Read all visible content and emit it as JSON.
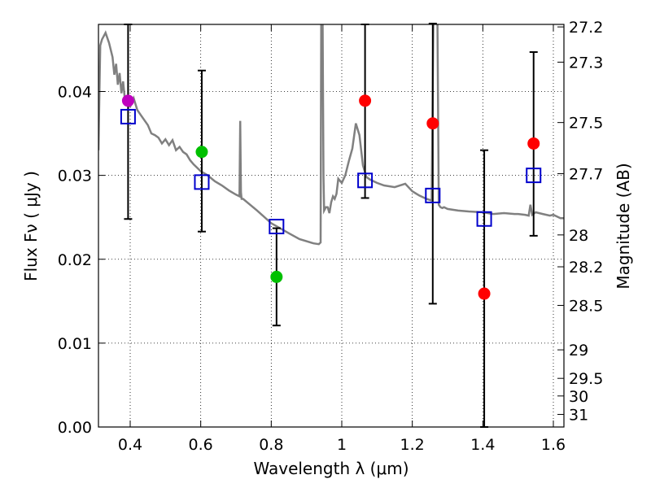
{
  "chart_data": {
    "type": "scatter",
    "xlabel": "Wavelength  λ (μm)",
    "ylabel": "Flux  Fν  ( μJy )",
    "ylabel_right": "Magnitude (AB)",
    "xlim": [
      0.31,
      1.63
    ],
    "ylim": [
      0.0,
      0.048
    ],
    "grid": true,
    "x_ticks": [
      0.4,
      0.6,
      0.8,
      1.0,
      1.2,
      1.4,
      1.6
    ],
    "x_tick_labels": [
      "0.4",
      "0.6",
      "0.8",
      "1",
      "1.2",
      "1.4",
      "1.6"
    ],
    "y_ticks": [
      0.0,
      0.01,
      0.02,
      0.03,
      0.04
    ],
    "y_tick_labels": [
      "0.00",
      "0.01",
      "0.02",
      "0.03",
      "0.04"
    ],
    "right_ticks": [
      {
        "label": "27.2",
        "flux": 0.0477
      },
      {
        "label": "27.3",
        "flux": 0.0435
      },
      {
        "label": "27.5",
        "flux": 0.0363
      },
      {
        "label": "27.7",
        "flux": 0.0302
      },
      {
        "label": "28",
        "flux": 0.0229
      },
      {
        "label": "28.2",
        "flux": 0.0191
      },
      {
        "label": "28.5",
        "flux": 0.0145
      },
      {
        "label": "29",
        "flux": 0.0092
      },
      {
        "label": "29.5",
        "flux": 0.0058
      },
      {
        "label": "30",
        "flux": 0.0037
      },
      {
        "label": "31",
        "flux": 0.0015
      }
    ],
    "observed": [
      {
        "x": 0.394,
        "y": 0.0389,
        "err_low": 0.0141,
        "err_high": 0.0091,
        "color": "#bf00bf"
      },
      {
        "x": 0.603,
        "y": 0.0328,
        "err_low": 0.0095,
        "err_high": 0.0097,
        "color": "#00c000"
      },
      {
        "x": 0.815,
        "y": 0.0179,
        "err_low": 0.0058,
        "err_high": 0.0058,
        "color": "#00c000"
      },
      {
        "x": 1.066,
        "y": 0.0389,
        "err_low": 0.0116,
        "err_high": 0.0091,
        "color": "#ff0000"
      },
      {
        "x": 1.258,
        "y": 0.0362,
        "err_low": 0.0215,
        "err_high": 0.0119,
        "color": "#ff0000"
      },
      {
        "x": 1.404,
        "y": 0.0159,
        "err_low": 0.0159,
        "err_high": 0.0171,
        "color": "#ff0000"
      },
      {
        "x": 1.544,
        "y": 0.0338,
        "err_low": 0.011,
        "err_high": 0.0109,
        "color": "#ff0000"
      }
    ],
    "model_points": [
      {
        "x": 0.394,
        "y": 0.037
      },
      {
        "x": 0.603,
        "y": 0.0292
      },
      {
        "x": 0.815,
        "y": 0.0239
      },
      {
        "x": 1.066,
        "y": 0.0294
      },
      {
        "x": 1.258,
        "y": 0.0276
      },
      {
        "x": 1.404,
        "y": 0.0248
      },
      {
        "x": 1.544,
        "y": 0.03
      }
    ],
    "model_spectrum": {
      "x": [
        0.31,
        0.315,
        0.32,
        0.33,
        0.34,
        0.35,
        0.355,
        0.36,
        0.365,
        0.37,
        0.375,
        0.38,
        0.385,
        0.39,
        0.4,
        0.41,
        0.42,
        0.43,
        0.44,
        0.45,
        0.46,
        0.47,
        0.48,
        0.49,
        0.5,
        0.51,
        0.52,
        0.53,
        0.54,
        0.55,
        0.56,
        0.57,
        0.58,
        0.6,
        0.62,
        0.64,
        0.66,
        0.68,
        0.7,
        0.71,
        0.712,
        0.714,
        0.716,
        0.72,
        0.74,
        0.76,
        0.8,
        0.85,
        0.88,
        0.92,
        0.935,
        0.94,
        0.942,
        0.945,
        0.948,
        0.95,
        0.955,
        0.96,
        0.965,
        0.97,
        0.975,
        0.98,
        0.985,
        0.99,
        1.0,
        1.01,
        1.02,
        1.03,
        1.04,
        1.05,
        1.06,
        1.07,
        1.08,
        1.1,
        1.12,
        1.15,
        1.18,
        1.2,
        1.22,
        1.24,
        1.255,
        1.26,
        1.265,
        1.27,
        1.275,
        1.28,
        1.285,
        1.29,
        1.3,
        1.33,
        1.36,
        1.4,
        1.43,
        1.46,
        1.49,
        1.5,
        1.52,
        1.53,
        1.535,
        1.54,
        1.55,
        1.57,
        1.59,
        1.6,
        1.62,
        1.63
      ],
      "y": [
        0.033,
        0.0455,
        0.0462,
        0.047,
        0.0458,
        0.0441,
        0.042,
        0.0433,
        0.0408,
        0.0422,
        0.0398,
        0.0412,
        0.039,
        0.0385,
        0.0382,
        0.0392,
        0.0378,
        0.0372,
        0.0366,
        0.036,
        0.035,
        0.0348,
        0.0345,
        0.0338,
        0.0343,
        0.0336,
        0.0342,
        0.033,
        0.0334,
        0.0328,
        0.0325,
        0.0318,
        0.0313,
        0.0305,
        0.03,
        0.0293,
        0.0288,
        0.0282,
        0.0277,
        0.0275,
        0.0365,
        0.028,
        0.0272,
        0.0272,
        0.0265,
        0.0258,
        0.0243,
        0.0231,
        0.0224,
        0.0219,
        0.0218,
        0.022,
        0.054,
        0.053,
        0.03,
        0.0258,
        0.0262,
        0.0262,
        0.0255,
        0.0268,
        0.0275,
        0.0272,
        0.0278,
        0.0296,
        0.0291,
        0.03,
        0.0317,
        0.0332,
        0.0362,
        0.0348,
        0.0312,
        0.0298,
        0.0295,
        0.0291,
        0.0288,
        0.0286,
        0.029,
        0.0281,
        0.0276,
        0.0272,
        0.027,
        0.05,
        0.06,
        0.056,
        0.0265,
        0.0262,
        0.0261,
        0.0262,
        0.026,
        0.0258,
        0.0257,
        0.0256,
        0.0254,
        0.0255,
        0.0254,
        0.0254,
        0.0253,
        0.0252,
        0.0265,
        0.0253,
        0.0256,
        0.0254,
        0.0252,
        0.0253,
        0.0249,
        0.0249
      ]
    }
  }
}
